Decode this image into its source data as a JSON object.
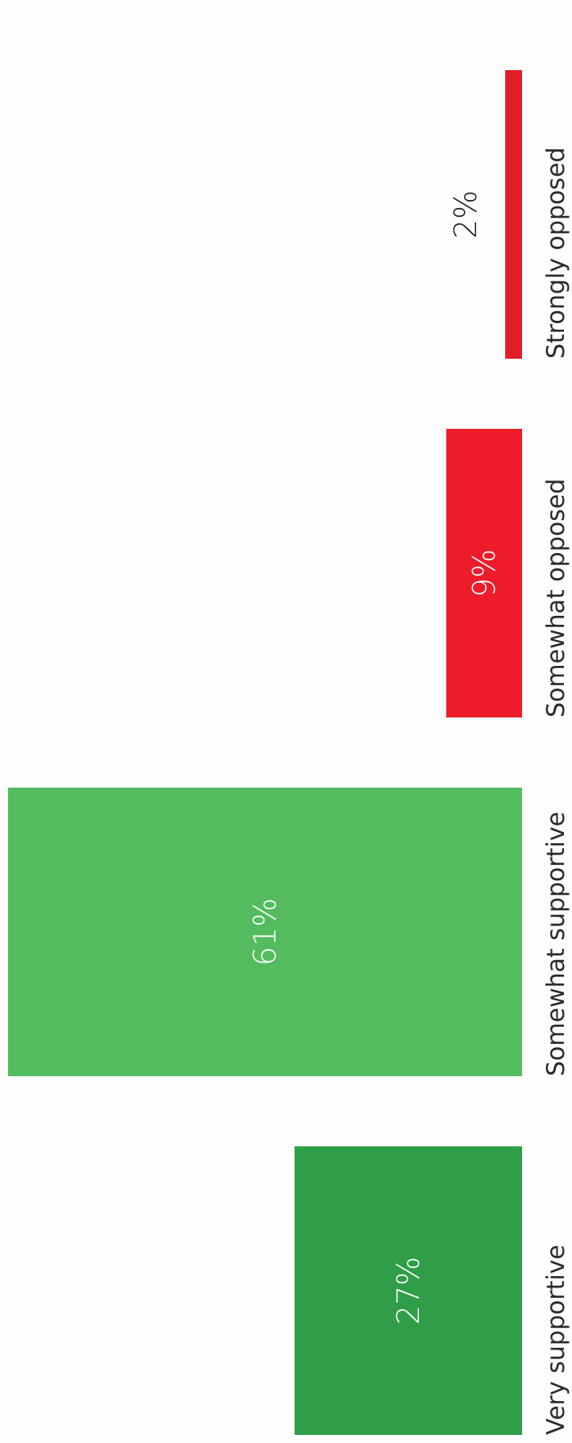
{
  "chart_data": {
    "type": "bar",
    "orientation": "horizontal",
    "categories": [
      "Very supportive",
      "Somewhat supportive",
      "Somewhat opposed",
      "Strongly opposed"
    ],
    "values": [
      27,
      61,
      9,
      2
    ],
    "value_labels": [
      "27%",
      "61%",
      "9%",
      "2%"
    ],
    "unit": "%",
    "colors": [
      "#309e48",
      "#54bc5e",
      "#ed1c2b",
      "#e21e27"
    ],
    "value_label_colors": [
      "#ffffff",
      "#ffffff",
      "#ffffff",
      "#222222"
    ],
    "title": "",
    "xlabel": "",
    "ylabel": "",
    "xlim": [
      0,
      61
    ],
    "grid": false,
    "legend": "none"
  }
}
